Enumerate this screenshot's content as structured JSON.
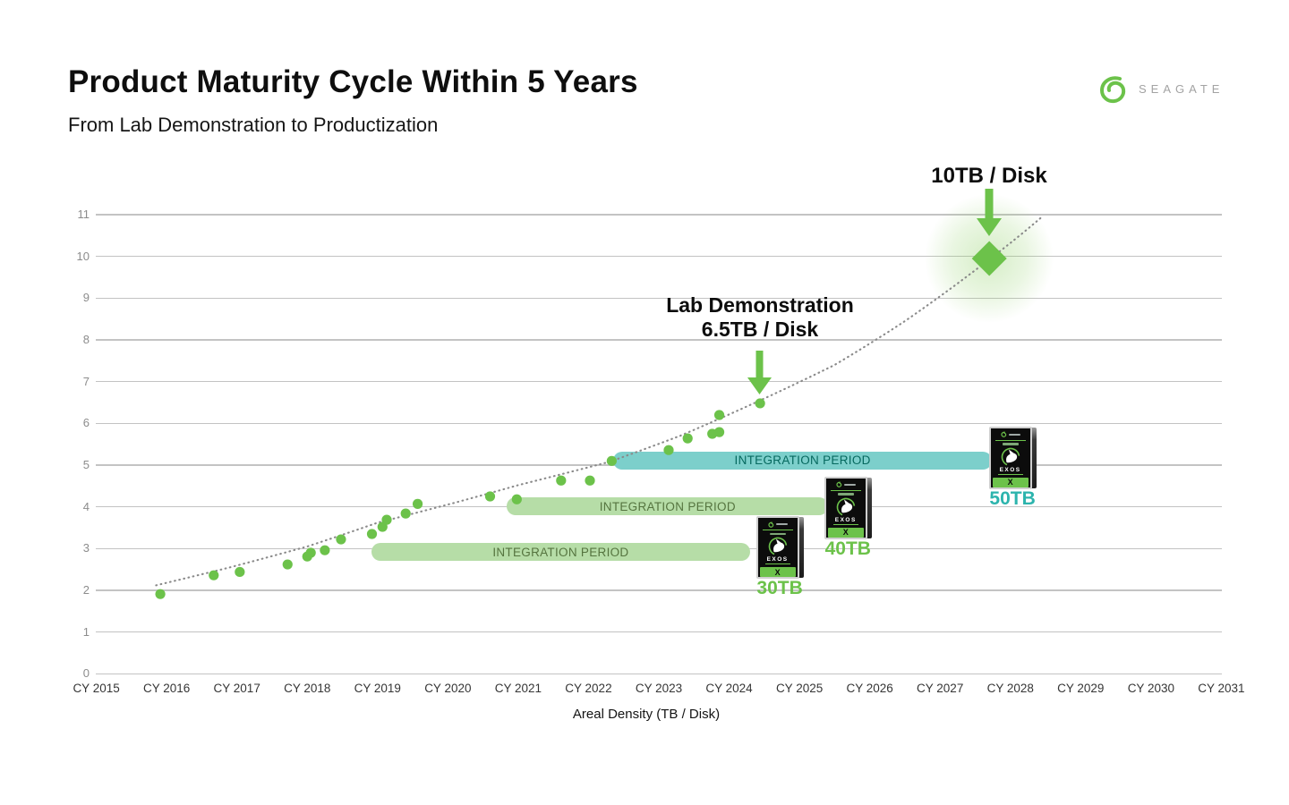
{
  "header": {
    "title": "Product Maturity Cycle Within 5 Years",
    "subtitle": "From Lab Demonstration to Productization",
    "brand": "SEAGATE"
  },
  "colors": {
    "seagate_green": "#6cc24a",
    "teal_bar": "#7ccfcb",
    "teal_text": "#06695f",
    "teal_label": "#2cb4ad",
    "green_bar": "#b6dda7",
    "green_bar_text": "#55743f",
    "grid": "#c3c3c3",
    "trend": "#8a8a8a"
  },
  "chart_data": {
    "type": "scatter",
    "title": "Product Maturity Cycle Within 5 Years",
    "subtitle": "From Lab Demonstration to Productization",
    "xlabel": "Areal Density (TB / Disk)",
    "x_tick_labels": [
      "CY 2015",
      "CY 2016",
      "CY 2017",
      "CY 2018",
      "CY 2019",
      "CY 2020",
      "CY 2021",
      "CY 2022",
      "CY 2023",
      "CY 2024",
      "CY 2025",
      "CY 2026",
      "CY 2027",
      "CY 2028",
      "CY 2029",
      "CY 2030",
      "CY 2031"
    ],
    "y_ticks": [
      0,
      1,
      2,
      3,
      4,
      5,
      6,
      7,
      8,
      9,
      10,
      11
    ],
    "ylim": [
      0,
      11
    ],
    "grid": "horizontal",
    "points_units": "[calendar_year, TB_per_disk]",
    "points": [
      [
        2015.91,
        1.91
      ],
      [
        2016.67,
        2.36
      ],
      [
        2017.04,
        2.44
      ],
      [
        2017.72,
        2.62
      ],
      [
        2018.0,
        2.81
      ],
      [
        2018.05,
        2.9
      ],
      [
        2018.25,
        2.96
      ],
      [
        2018.48,
        3.22
      ],
      [
        2018.92,
        3.35
      ],
      [
        2019.07,
        3.52
      ],
      [
        2019.13,
        3.69
      ],
      [
        2019.4,
        3.84
      ],
      [
        2019.57,
        4.07
      ],
      [
        2020.6,
        4.25
      ],
      [
        2020.98,
        4.18
      ],
      [
        2021.61,
        4.63
      ],
      [
        2022.02,
        4.63
      ],
      [
        2022.33,
        5.1
      ],
      [
        2023.14,
        5.36
      ],
      [
        2023.41,
        5.64
      ],
      [
        2023.76,
        5.75
      ],
      [
        2023.86,
        5.79
      ],
      [
        2023.86,
        6.2
      ],
      [
        2024.44,
        6.48
      ]
    ],
    "trend_line": [
      [
        2015.85,
        2.12
      ],
      [
        2016.9,
        2.55
      ],
      [
        2018.0,
        3.05
      ],
      [
        2019.0,
        3.62
      ],
      [
        2020.1,
        4.1
      ],
      [
        2021.0,
        4.52
      ],
      [
        2022.3,
        5.08
      ],
      [
        2023.3,
        5.7
      ],
      [
        2024.44,
        6.55
      ],
      [
        2025.5,
        7.4
      ],
      [
        2026.5,
        8.45
      ],
      [
        2027.7,
        9.93
      ],
      [
        2028.45,
        10.95
      ]
    ],
    "highlight": {
      "x": 2027.7,
      "y": 9.95,
      "label": "10TB / Disk"
    },
    "lab_annotation": {
      "x": 2024.44,
      "y": 6.48,
      "line1": "Lab Demonstration",
      "line2": "6.5TB / Disk"
    },
    "integration_bars": [
      {
        "label": "INTEGRATION PERIOD",
        "x_start": 2018.91,
        "x_end": 2024.3,
        "y": 2.92,
        "fill": "#b6dda7",
        "text_color": "#55743f"
      },
      {
        "label": "INTEGRATION PERIOD",
        "x_start": 2020.84,
        "x_end": 2025.41,
        "y": 4.01,
        "fill": "#b6dda7",
        "text_color": "#55743f"
      },
      {
        "label": "INTEGRATION PERIOD",
        "x_start": 2022.35,
        "x_end": 2027.74,
        "y": 5.11,
        "fill": "#7ccfcb",
        "text_color": "#06695f"
      }
    ],
    "disks": [
      {
        "label": "30TB",
        "label_color": "#6cc24a",
        "x": 2024.72,
        "y_top": 3.77
      },
      {
        "label": "40TB",
        "label_color": "#6cc24a",
        "x": 2025.69,
        "y_top": 4.72
      },
      {
        "label": "50TB",
        "label_color": "#2cb4ad",
        "x": 2028.03,
        "y_top": 5.92
      }
    ],
    "disk_text": {
      "series": "EXOS",
      "badge": "X"
    }
  }
}
